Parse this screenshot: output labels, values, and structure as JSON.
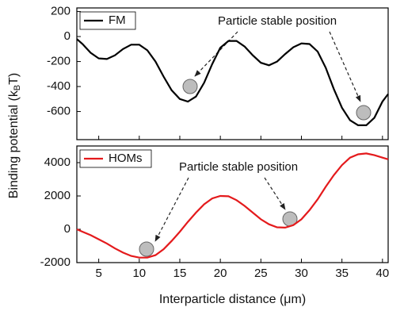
{
  "chart_data": [
    {
      "type": "line",
      "ylabel": [
        "Binding potential (k",
        "B",
        "T)"
      ],
      "annotation": "Particle stable position",
      "x": [
        2.3,
        3,
        4,
        5,
        6,
        7,
        8,
        9,
        10,
        11,
        12,
        13,
        14,
        15,
        16,
        17,
        18,
        19,
        20,
        21,
        22,
        23,
        24,
        25,
        26,
        27,
        28,
        29,
        30,
        31,
        32,
        33,
        34,
        35,
        36,
        37,
        38,
        39,
        40,
        40.7
      ],
      "series": [
        {
          "name": "FM",
          "color": "#000000",
          "values": [
            -20,
            -60,
            -130,
            -175,
            -180,
            -150,
            -100,
            -65,
            -65,
            -110,
            -200,
            -320,
            -430,
            -500,
            -520,
            -480,
            -370,
            -220,
            -90,
            -35,
            -35,
            -80,
            -150,
            -210,
            -230,
            -200,
            -140,
            -85,
            -55,
            -60,
            -120,
            -250,
            -420,
            -570,
            -670,
            -710,
            -710,
            -650,
            -520,
            -460
          ]
        }
      ],
      "xlim": [
        2.3,
        40.7
      ],
      "xticks": [
        5,
        10,
        15,
        20,
        25,
        30,
        35,
        40
      ],
      "ylim": [
        -825,
        229
      ],
      "yticks": [
        200,
        0,
        -200,
        -400,
        -600
      ]
    },
    {
      "type": "line",
      "xlabel": "Interparticle distance (μm)",
      "annotation": "Particle stable position",
      "x": [
        2.3,
        3,
        4,
        5,
        6,
        7,
        8,
        9,
        10,
        11,
        12,
        13,
        14,
        15,
        16,
        17,
        18,
        19,
        20,
        21,
        22,
        23,
        24,
        25,
        26,
        27,
        28,
        29,
        30,
        31,
        32,
        33,
        34,
        35,
        36,
        37,
        38,
        39,
        40,
        40.7
      ],
      "series": [
        {
          "name": "HOMs",
          "color": "#e41a1c",
          "values": [
            0,
            -150,
            -350,
            -600,
            -850,
            -1150,
            -1400,
            -1600,
            -1700,
            -1700,
            -1550,
            -1200,
            -700,
            -150,
            450,
            1000,
            1500,
            1850,
            2000,
            1980,
            1750,
            1400,
            1000,
            600,
            300,
            120,
            100,
            250,
            600,
            1150,
            1800,
            2550,
            3250,
            3850,
            4300,
            4500,
            4550,
            4450,
            4300,
            4200
          ]
        }
      ],
      "xlim": [
        2.3,
        40.7
      ],
      "xticks": [
        5,
        10,
        15,
        20,
        25,
        30,
        35,
        40
      ],
      "ylim": [
        -2000,
        5000
      ],
      "yticks": [
        4000,
        2000,
        0,
        -2000
      ]
    }
  ]
}
